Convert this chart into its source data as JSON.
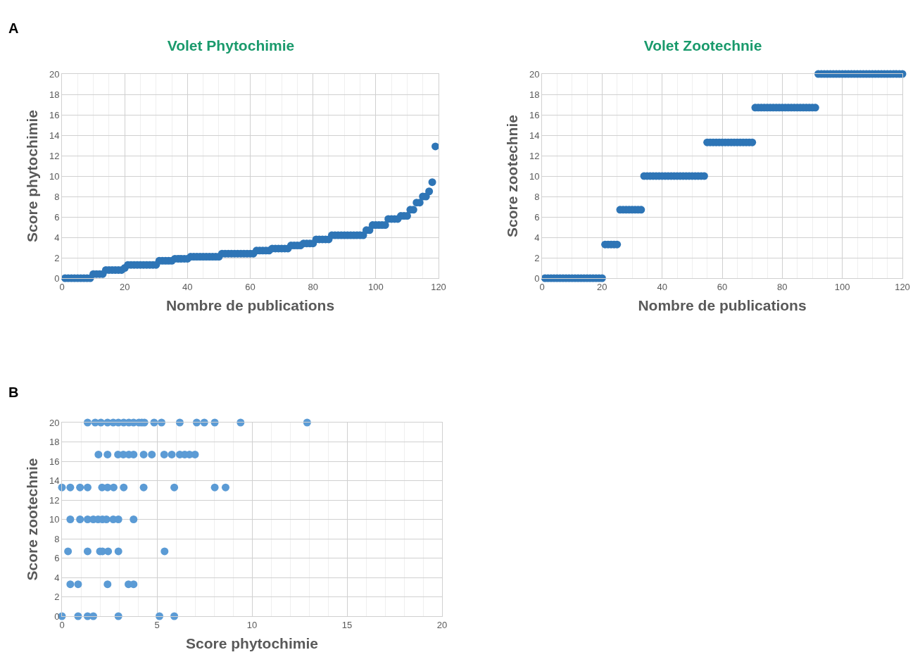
{
  "chart_data": [
    {
      "type": "scatter",
      "title": "Volet Phytochimie",
      "xlabel": "Nombre de publications",
      "ylabel": "Score phytochimie",
      "annotations": [
        "A"
      ],
      "marker": "circle",
      "grid": true,
      "xlim": [
        0,
        120
      ],
      "ylim": [
        0,
        20
      ],
      "xticks": [
        0,
        20,
        40,
        60,
        80,
        100,
        120
      ],
      "yticks": [
        0,
        2,
        4,
        6,
        8,
        10,
        12,
        14,
        16,
        18,
        20
      ],
      "series": [
        {
          "color": "#2e75b6",
          "x": [
            1,
            2,
            3,
            4,
            5,
            6,
            7,
            8,
            9,
            10,
            11,
            12,
            13,
            14,
            15,
            16,
            17,
            18,
            19,
            20,
            21,
            22,
            23,
            24,
            25,
            26,
            27,
            28,
            29,
            30,
            31,
            32,
            33,
            34,
            35,
            36,
            37,
            38,
            39,
            40,
            41,
            42,
            43,
            44,
            45,
            46,
            47,
            48,
            49,
            50,
            51,
            52,
            53,
            54,
            55,
            56,
            57,
            58,
            59,
            60,
            61,
            62,
            63,
            64,
            65,
            66,
            67,
            68,
            69,
            70,
            71,
            72,
            73,
            74,
            75,
            76,
            77,
            78,
            79,
            80,
            81,
            82,
            83,
            84,
            85,
            86,
            87,
            88,
            89,
            90,
            91,
            92,
            93,
            94,
            95,
            96,
            97,
            98,
            99,
            100,
            101,
            102,
            103,
            104,
            105,
            106,
            107,
            108,
            109,
            110,
            111,
            112,
            113,
            114,
            115,
            116,
            117,
            118,
            119
          ],
          "values": [
            0,
            0,
            0,
            0,
            0,
            0,
            0,
            0,
            0,
            0.4,
            0.4,
            0.4,
            0.4,
            0.8,
            0.8,
            0.8,
            0.8,
            0.8,
            0.8,
            1.0,
            1.3,
            1.3,
            1.3,
            1.3,
            1.3,
            1.3,
            1.3,
            1.3,
            1.3,
            1.3,
            1.7,
            1.7,
            1.7,
            1.7,
            1.7,
            1.9,
            1.9,
            1.9,
            1.9,
            1.9,
            2.1,
            2.1,
            2.1,
            2.1,
            2.1,
            2.1,
            2.1,
            2.1,
            2.1,
            2.1,
            2.4,
            2.4,
            2.4,
            2.4,
            2.4,
            2.4,
            2.4,
            2.4,
            2.4,
            2.4,
            2.4,
            2.7,
            2.7,
            2.7,
            2.7,
            2.7,
            2.9,
            2.9,
            2.9,
            2.9,
            2.9,
            2.9,
            3.2,
            3.2,
            3.2,
            3.2,
            3.4,
            3.4,
            3.4,
            3.4,
            3.8,
            3.8,
            3.8,
            3.8,
            3.8,
            4.2,
            4.2,
            4.2,
            4.2,
            4.2,
            4.2,
            4.2,
            4.2,
            4.2,
            4.2,
            4.2,
            4.7,
            4.7,
            5.2,
            5.2,
            5.2,
            5.2,
            5.2,
            5.8,
            5.8,
            5.8,
            5.8,
            6.1,
            6.1,
            6.1,
            6.7,
            6.7,
            7.4,
            7.4,
            8.0,
            8.0,
            8.5,
            9.4,
            12.9
          ]
        }
      ]
    },
    {
      "type": "scatter",
      "title": "Volet Zootechnie",
      "xlabel": "Nombre de publications",
      "ylabel": "Score zootechnie",
      "marker": "circle",
      "grid": true,
      "xlim": [
        0,
        120
      ],
      "ylim": [
        0,
        20
      ],
      "xticks": [
        0,
        20,
        40,
        60,
        80,
        100,
        120
      ],
      "yticks": [
        0,
        2,
        4,
        6,
        8,
        10,
        12,
        14,
        16,
        18,
        20
      ],
      "series": [
        {
          "color": "#2e75b6",
          "x": [
            1,
            2,
            3,
            4,
            5,
            6,
            7,
            8,
            9,
            10,
            11,
            12,
            13,
            14,
            15,
            16,
            17,
            18,
            19,
            20,
            21,
            22,
            23,
            24,
            25,
            26,
            27,
            28,
            29,
            30,
            31,
            32,
            33,
            34,
            35,
            36,
            37,
            38,
            39,
            40,
            41,
            42,
            43,
            44,
            45,
            46,
            47,
            48,
            49,
            50,
            51,
            52,
            53,
            54,
            55,
            56,
            57,
            58,
            59,
            60,
            61,
            62,
            63,
            64,
            65,
            66,
            67,
            68,
            69,
            70,
            71,
            72,
            73,
            74,
            75,
            76,
            77,
            78,
            79,
            80,
            81,
            82,
            83,
            84,
            85,
            86,
            87,
            88,
            89,
            90,
            91,
            92,
            93,
            94,
            95,
            96,
            97,
            98,
            99,
            100,
            101,
            102,
            103,
            104,
            105,
            106,
            107,
            108,
            109,
            110,
            111,
            112,
            113,
            114,
            115,
            116,
            117,
            118,
            119,
            120
          ],
          "values": [
            0,
            0,
            0,
            0,
            0,
            0,
            0,
            0,
            0,
            0,
            0,
            0,
            0,
            0,
            0,
            0,
            0,
            0,
            0,
            0,
            3.3,
            3.3,
            3.3,
            3.3,
            3.3,
            6.7,
            6.7,
            6.7,
            6.7,
            6.7,
            6.7,
            6.7,
            6.7,
            10,
            10,
            10,
            10,
            10,
            10,
            10,
            10,
            10,
            10,
            10,
            10,
            10,
            10,
            10,
            10,
            10,
            10,
            10,
            10,
            10,
            13.3,
            13.3,
            13.3,
            13.3,
            13.3,
            13.3,
            13.3,
            13.3,
            13.3,
            13.3,
            13.3,
            13.3,
            13.3,
            13.3,
            13.3,
            13.3,
            16.7,
            16.7,
            16.7,
            16.7,
            16.7,
            16.7,
            16.7,
            16.7,
            16.7,
            16.7,
            16.7,
            16.7,
            16.7,
            16.7,
            16.7,
            16.7,
            16.7,
            16.7,
            16.7,
            16.7,
            16.7,
            20,
            20,
            20,
            20,
            20,
            20,
            20,
            20,
            20,
            20,
            20,
            20,
            20,
            20,
            20,
            20,
            20,
            20,
            20,
            20,
            20,
            20,
            20,
            20,
            20,
            20,
            20,
            20,
            20
          ]
        }
      ]
    },
    {
      "type": "scatter",
      "xlabel": "Score phytochimie",
      "ylabel": "Score zootechnie",
      "annotations": [
        "B"
      ],
      "marker": "circle",
      "grid": true,
      "xlim": [
        0,
        20
      ],
      "ylim": [
        0,
        20
      ],
      "xticks": [
        0,
        5,
        10,
        15,
        20
      ],
      "yticks": [
        0,
        2,
        4,
        6,
        8,
        10,
        12,
        14,
        16,
        18,
        20
      ],
      "series": [
        {
          "color": "#5b9bd5",
          "x": [
            1.35,
            1.75,
            2.05,
            2.4,
            2.7,
            2.97,
            3.25,
            3.52,
            3.77,
            4.05,
            4.2,
            4.34,
            4.85,
            5.24,
            6.2,
            7.09,
            7.49,
            8.04,
            9.4,
            12.9,
            1.92,
            2.4,
            2.95,
            3.23,
            3.52,
            3.77,
            4.3,
            4.73,
            5.38,
            5.78,
            6.2,
            6.46,
            6.71,
            7.0,
            0,
            0.44,
            0.95,
            1.35,
            2.11,
            2.4,
            2.72,
            3.25,
            4.3,
            5.91,
            8.04,
            8.61,
            0.44,
            0.95,
            1.35,
            1.65,
            1.9,
            2.13,
            2.34,
            2.7,
            2.97,
            3.77,
            0.32,
            1.35,
            2.0,
            2.13,
            2.43,
            2.97,
            5.4,
            0.44,
            0.85,
            2.4,
            3.5,
            3.77,
            0,
            0.85,
            1.35,
            1.65,
            2.97,
            5.13,
            5.91
          ],
          "values": [
            20,
            20,
            20,
            20,
            20,
            20,
            20,
            20,
            20,
            20,
            20,
            20,
            20,
            20,
            20,
            20,
            20,
            20,
            20,
            20,
            16.7,
            16.7,
            16.7,
            16.7,
            16.7,
            16.7,
            16.7,
            16.7,
            16.7,
            16.7,
            16.7,
            16.7,
            16.7,
            16.7,
            13.3,
            13.3,
            13.3,
            13.3,
            13.3,
            13.3,
            13.3,
            13.3,
            13.3,
            13.3,
            13.3,
            13.3,
            10,
            10,
            10,
            10,
            10,
            10,
            10,
            10,
            10,
            10,
            6.7,
            6.7,
            6.7,
            6.7,
            6.7,
            6.7,
            6.7,
            3.3,
            3.3,
            3.3,
            3.3,
            3.3,
            0,
            0,
            0,
            0,
            0,
            0,
            0
          ]
        }
      ]
    }
  ]
}
